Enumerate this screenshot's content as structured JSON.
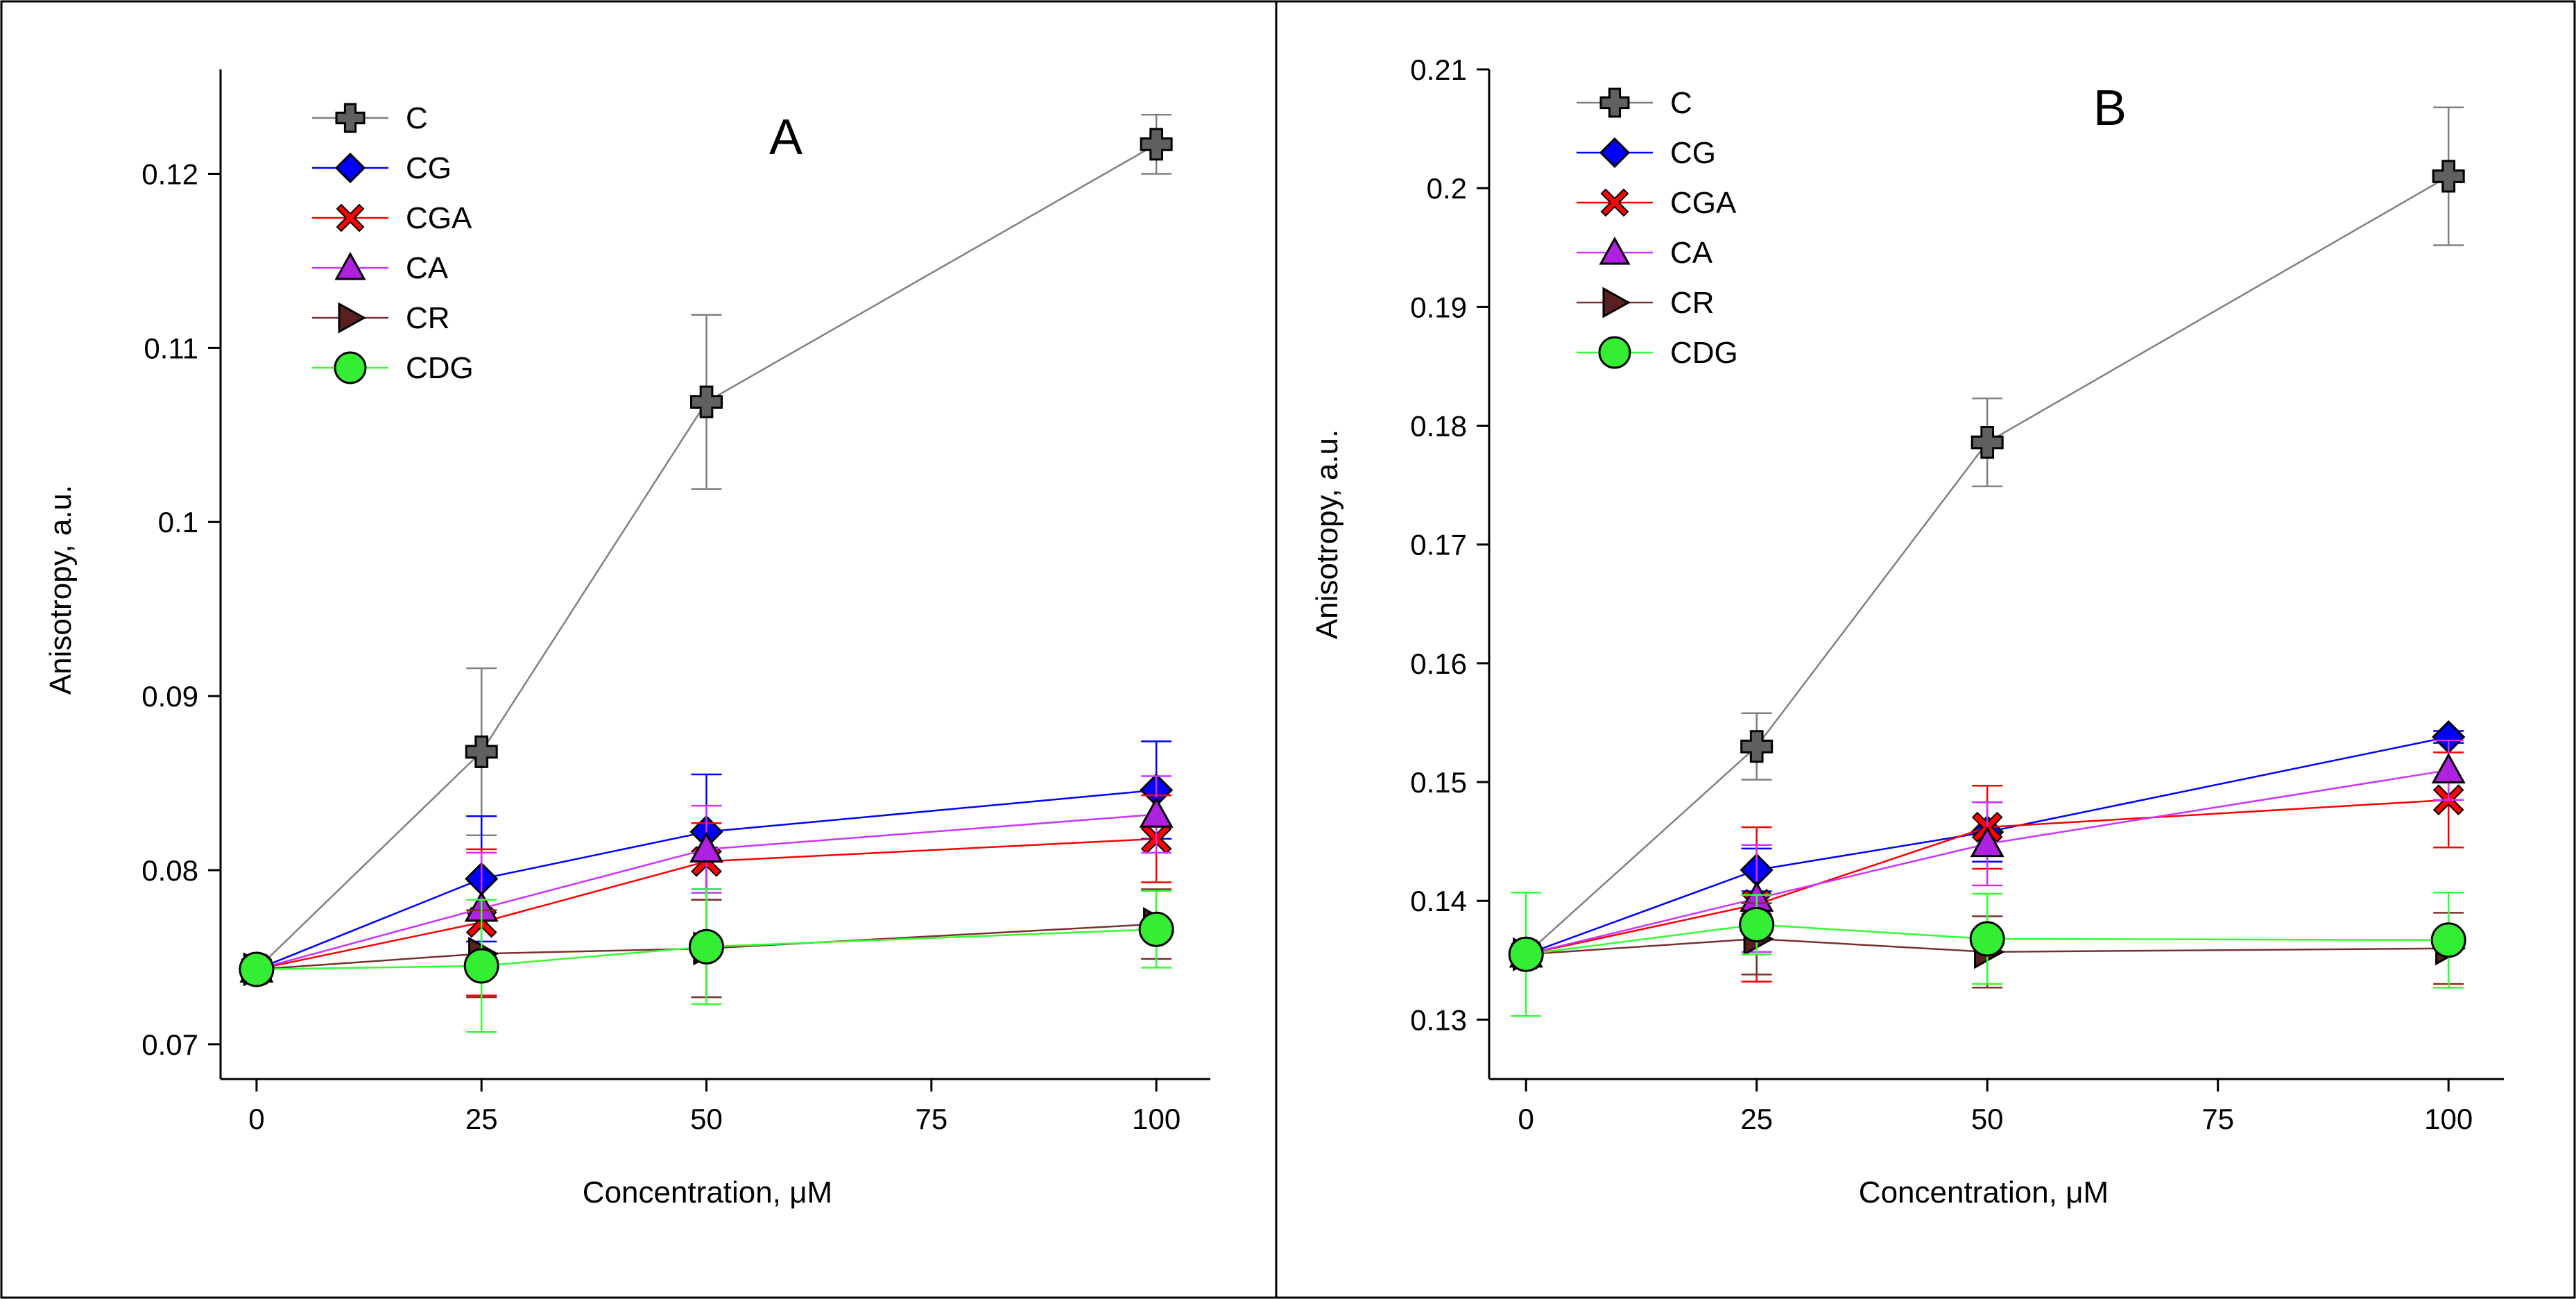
{
  "chart_data": [
    {
      "type": "line",
      "title": "A",
      "xlabel": "Concentration,  μM",
      "ylabel": "Anisotropy, a.u.",
      "x": [
        0,
        25,
        50,
        100
      ],
      "xticks": [
        0,
        25,
        50,
        75,
        100
      ],
      "xlim": [
        -4,
        106
      ],
      "ylim": [
        0.068,
        0.126
      ],
      "yticks": [
        0.07,
        0.08,
        0.09,
        0.1,
        0.11,
        0.12
      ],
      "ytick_labels": [
        "0.07",
        "0.08",
        "0.09",
        "0.1",
        "0.11",
        "0.12"
      ],
      "grid": false,
      "legend": "top-left",
      "series": [
        {
          "name": "C",
          "marker": "plus",
          "color": "#808080",
          "fill": "#606060",
          "values": [
            0.0743,
            0.0868,
            0.1069,
            0.1217
          ],
          "errors": [
            0.0005,
            0.0048,
            0.005,
            0.0017
          ]
        },
        {
          "name": "CG",
          "marker": "diamond",
          "color": "#0000ff",
          "fill": "#0000ff",
          "values": [
            0.0743,
            0.0795,
            0.0822,
            0.0846
          ],
          "errors": [
            0.0005,
            0.0036,
            0.0033,
            0.0028
          ]
        },
        {
          "name": "CGA",
          "marker": "x",
          "color": "#ff0000",
          "fill": "#ff0000",
          "values": [
            0.0743,
            0.077,
            0.0805,
            0.0818
          ],
          "errors": [
            0.0005,
            0.0042,
            0.0022,
            0.0025
          ]
        },
        {
          "name": "CA",
          "marker": "triangle-up",
          "color": "#cc33ff",
          "fill": "#b020e0",
          "values": [
            0.0743,
            0.0778,
            0.0812,
            0.0832
          ],
          "errors": [
            0.0005,
            0.0032,
            0.0025,
            0.0022
          ]
        },
        {
          "name": "CR",
          "marker": "triangle-right",
          "color": "#7a3030",
          "fill": "#5a2020",
          "values": [
            0.0743,
            0.0752,
            0.0755,
            0.0769
          ],
          "errors": [
            0.0005,
            0.0025,
            0.0028,
            0.002
          ]
        },
        {
          "name": "CDG",
          "marker": "circle",
          "color": "#33ff33",
          "fill": "#33ee33",
          "values": [
            0.0743,
            0.0745,
            0.0756,
            0.0766
          ],
          "errors": [
            0.0005,
            0.0038,
            0.0033,
            0.0022
          ]
        }
      ]
    },
    {
      "type": "line",
      "title": "B",
      "xlabel": "Concentration,  μM",
      "ylabel": "Anisotropy, a.u.",
      "x": [
        0,
        25,
        50,
        100
      ],
      "xticks": [
        0,
        25,
        50,
        75,
        100
      ],
      "xlim": [
        -4,
        106
      ],
      "ylim": [
        0.125,
        0.21
      ],
      "yticks": [
        0.13,
        0.14,
        0.15,
        0.16,
        0.17,
        0.18,
        0.19,
        0.2,
        0.21
      ],
      "ytick_labels": [
        "0.13",
        "0.14",
        "0.15",
        "0.16",
        "0.17",
        "0.18",
        "0.19",
        "0.2",
        "0.21"
      ],
      "grid": false,
      "legend": "top-left",
      "series": [
        {
          "name": "C",
          "marker": "plus",
          "color": "#808080",
          "fill": "#606060",
          "values": [
            0.1355,
            0.153,
            0.1786,
            0.201
          ],
          "errors": [
            0.0005,
            0.0028,
            0.0037,
            0.0058
          ]
        },
        {
          "name": "CG",
          "marker": "diamond",
          "color": "#0000ff",
          "fill": "#0000ff",
          "values": [
            0.1355,
            0.1426,
            0.1458,
            0.1538
          ],
          "errors": [
            0.0005,
            0.0018,
            0.0025,
            0.0005
          ]
        },
        {
          "name": "CGA",
          "marker": "x",
          "color": "#ff0000",
          "fill": "#ff0000",
          "values": [
            0.1355,
            0.1397,
            0.1462,
            0.1485
          ],
          "errors": [
            0.0005,
            0.0065,
            0.0035,
            0.004
          ]
        },
        {
          "name": "CA",
          "marker": "triangle-up",
          "color": "#cc33ff",
          "fill": "#b020e0",
          "values": [
            0.1355,
            0.1402,
            0.1448,
            0.151
          ],
          "errors": [
            0.0005,
            0.0045,
            0.0035,
            0.0025
          ]
        },
        {
          "name": "CR",
          "marker": "triangle-right",
          "color": "#7a3030",
          "fill": "#5a2020",
          "values": [
            0.1355,
            0.1368,
            0.1357,
            0.136
          ],
          "errors": [
            0.0005,
            0.003,
            0.003,
            0.003
          ]
        },
        {
          "name": "CDG",
          "marker": "circle",
          "color": "#33ff33",
          "fill": "#33ee33",
          "values": [
            0.1355,
            0.138,
            0.1368,
            0.1367
          ],
          "errors": [
            0.0052,
            0.0025,
            0.0038,
            0.004
          ]
        }
      ]
    }
  ]
}
